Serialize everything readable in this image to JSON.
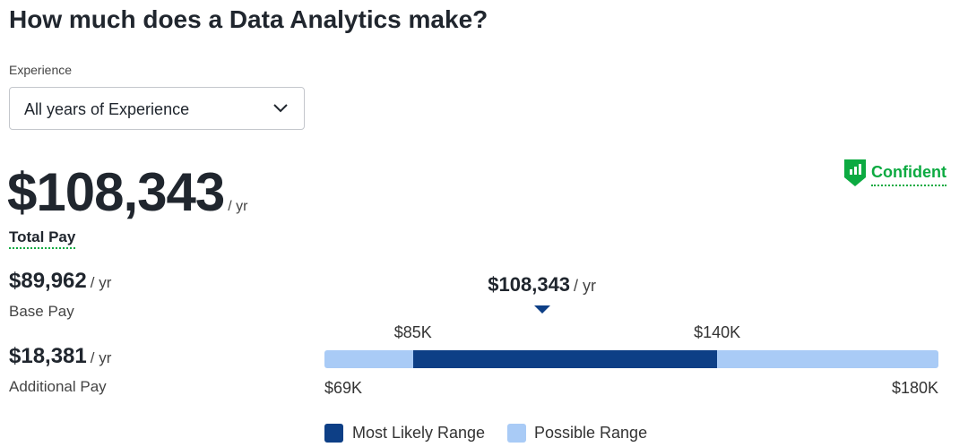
{
  "title": "How much does a Data Analytics make?",
  "experience": {
    "label": "Experience",
    "selected": "All years of Experience"
  },
  "confidence": "Confident",
  "total_pay": {
    "amount": "$108,343",
    "unit": "/ yr",
    "label": "Total Pay"
  },
  "base_pay": {
    "amount": "$89,962",
    "unit": "/ yr",
    "label": "Base Pay"
  },
  "additional_pay": {
    "amount": "$18,381",
    "unit": "/ yr",
    "label": "Additional Pay"
  },
  "range": {
    "median": {
      "value": 108343,
      "label": "$108,343",
      "unit": "/ yr"
    },
    "likely_low": {
      "value": 85000,
      "label": "$85K"
    },
    "likely_high": {
      "value": 140000,
      "label": "$140K"
    },
    "min": {
      "value": 69000,
      "label": "$69K"
    },
    "max": {
      "value": 180000,
      "label": "$180K"
    }
  },
  "legend": [
    "Most Likely Range",
    "Possible Range"
  ]
}
